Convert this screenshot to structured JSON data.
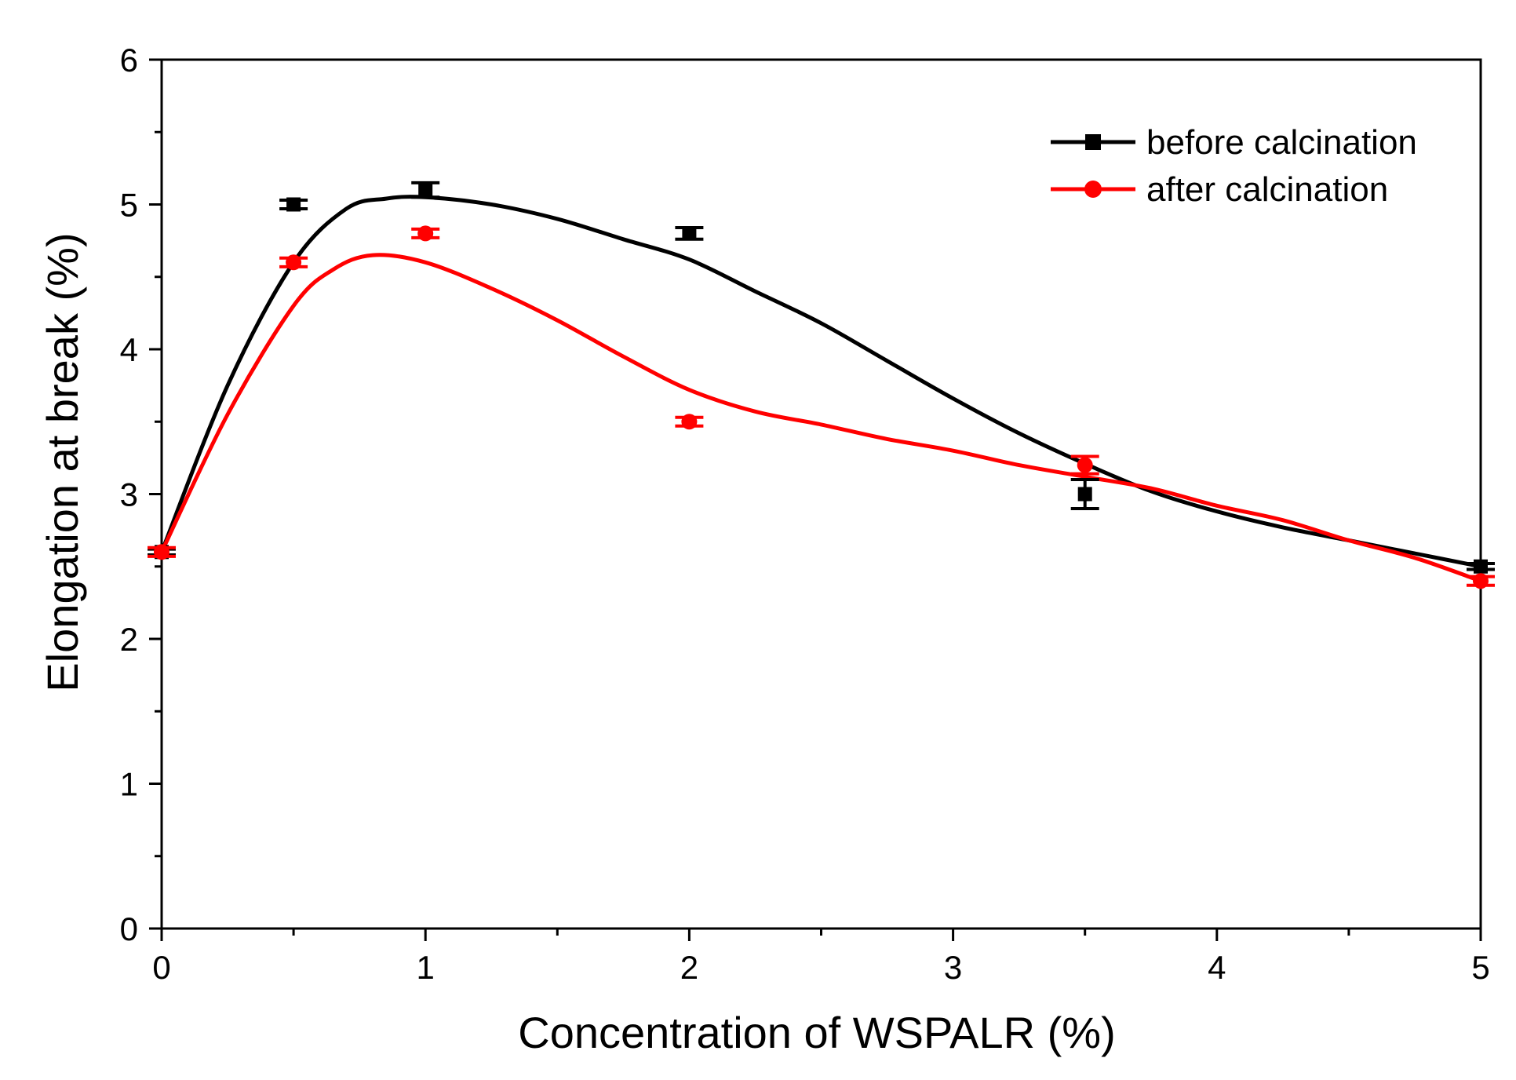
{
  "chart_data": {
    "type": "line",
    "title": "",
    "xlabel": "Concentration of WSPALR (%)",
    "ylabel": "Elongation at break (%)",
    "xlim": [
      0,
      5
    ],
    "ylim": [
      0,
      6
    ],
    "xticks": [
      0,
      1,
      2,
      3,
      4,
      5
    ],
    "yticks": [
      0,
      1,
      2,
      3,
      4,
      5,
      6
    ],
    "xtick_labels": [
      "0",
      "1",
      "2",
      "3",
      "4",
      "5"
    ],
    "ytick_labels": [
      "0",
      "1",
      "2",
      "3",
      "4",
      "5",
      "6"
    ],
    "grid": false,
    "legend_position": "top-right",
    "series": [
      {
        "name": "before calcination",
        "color": "#000000",
        "marker": "square",
        "x": [
          0,
          0.5,
          1,
          2,
          3.5,
          5
        ],
        "y": [
          2.6,
          5.0,
          5.1,
          4.8,
          3.0,
          2.5
        ],
        "error": [
          0.02,
          0.03,
          0.05,
          0.04,
          0.1,
          0.02
        ],
        "fit_curve": [
          [
            0,
            2.6
          ],
          [
            0.25,
            3.75
          ],
          [
            0.5,
            4.6
          ],
          [
            0.7,
            4.97
          ],
          [
            0.85,
            5.04
          ],
          [
            1.0,
            5.05
          ],
          [
            1.25,
            5.0
          ],
          [
            1.5,
            4.9
          ],
          [
            1.75,
            4.76
          ],
          [
            2.0,
            4.62
          ],
          [
            2.25,
            4.4
          ],
          [
            2.5,
            4.18
          ],
          [
            2.75,
            3.92
          ],
          [
            3.0,
            3.66
          ],
          [
            3.25,
            3.42
          ],
          [
            3.5,
            3.21
          ],
          [
            3.75,
            3.02
          ],
          [
            4.0,
            2.88
          ],
          [
            4.25,
            2.77
          ],
          [
            4.5,
            2.68
          ],
          [
            4.75,
            2.59
          ],
          [
            5.0,
            2.5
          ]
        ]
      },
      {
        "name": "after calcination",
        "color": "#ff0000",
        "marker": "circle",
        "x": [
          0,
          0.5,
          1,
          2,
          3.5,
          5
        ],
        "y": [
          2.6,
          4.6,
          4.8,
          3.5,
          3.2,
          2.4
        ],
        "error": [
          0.03,
          0.03,
          0.03,
          0.03,
          0.06,
          0.03
        ],
        "fit_curve": [
          [
            0,
            2.6
          ],
          [
            0.25,
            3.55
          ],
          [
            0.5,
            4.3
          ],
          [
            0.65,
            4.55
          ],
          [
            0.8,
            4.65
          ],
          [
            1.0,
            4.6
          ],
          [
            1.25,
            4.42
          ],
          [
            1.5,
            4.2
          ],
          [
            1.75,
            3.95
          ],
          [
            2.0,
            3.72
          ],
          [
            2.25,
            3.57
          ],
          [
            2.5,
            3.48
          ],
          [
            2.75,
            3.38
          ],
          [
            3.0,
            3.3
          ],
          [
            3.25,
            3.2
          ],
          [
            3.5,
            3.12
          ],
          [
            3.75,
            3.04
          ],
          [
            4.0,
            2.92
          ],
          [
            4.25,
            2.82
          ],
          [
            4.5,
            2.68
          ],
          [
            4.75,
            2.56
          ],
          [
            5.0,
            2.4
          ]
        ]
      }
    ]
  }
}
